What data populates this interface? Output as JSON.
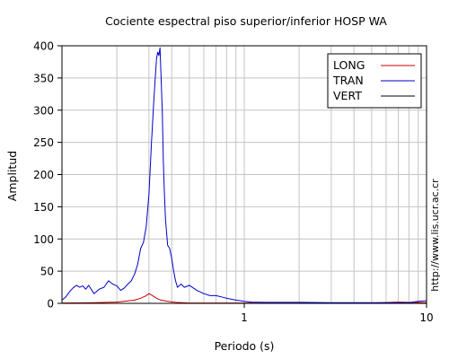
{
  "chart_data": {
    "type": "line",
    "title": "Cociente espectral piso superior/inferior  HOSP WA",
    "xlabel": "Periodo (s)",
    "ylabel": "Amplitud",
    "xscale": "log",
    "xlim": [
      0.1,
      10
    ],
    "ylim": [
      0,
      400
    ],
    "x_tick_labels": [
      {
        "value": 1,
        "label": "1"
      },
      {
        "value": 10,
        "label": "10"
      }
    ],
    "y_ticks": [
      0,
      50,
      100,
      150,
      200,
      250,
      300,
      350,
      400
    ],
    "grid": true,
    "legend_position": "top-right",
    "side_note": "http://www.lis.ucr.ac.cr",
    "series": [
      {
        "name": "LONG",
        "color": "#cc0000",
        "x": [
          0.1,
          0.15,
          0.2,
          0.25,
          0.27,
          0.29,
          0.3,
          0.31,
          0.33,
          0.35,
          0.38,
          0.42,
          0.5,
          0.7,
          1,
          2,
          3,
          5,
          7,
          10
        ],
        "y": [
          0.5,
          1,
          2,
          5,
          8,
          12,
          15,
          13,
          8,
          5,
          3,
          1.5,
          0.5,
          0.5,
          0.5,
          0.5,
          0.5,
          0.5,
          2,
          1
        ]
      },
      {
        "name": "TRAN",
        "color": "#0000cc",
        "x": [
          0.1,
          0.105,
          0.11,
          0.115,
          0.12,
          0.125,
          0.13,
          0.135,
          0.14,
          0.15,
          0.16,
          0.17,
          0.18,
          0.19,
          0.2,
          0.21,
          0.22,
          0.23,
          0.24,
          0.25,
          0.26,
          0.27,
          0.28,
          0.29,
          0.3,
          0.31,
          0.32,
          0.33,
          0.335,
          0.34,
          0.345,
          0.35,
          0.355,
          0.36,
          0.365,
          0.37,
          0.38,
          0.39,
          0.4,
          0.41,
          0.42,
          0.43,
          0.45,
          0.47,
          0.5,
          0.55,
          0.6,
          0.65,
          0.7,
          0.75,
          0.8,
          0.9,
          1.0,
          1.1,
          1.3,
          1.5,
          2,
          3,
          4,
          5,
          7,
          8,
          9,
          10
        ],
        "y": [
          5,
          10,
          18,
          24,
          28,
          25,
          27,
          22,
          28,
          15,
          22,
          25,
          35,
          30,
          27,
          20,
          24,
          30,
          35,
          45,
          60,
          85,
          95,
          120,
          170,
          250,
          320,
          380,
          390,
          385,
          397,
          350,
          300,
          220,
          170,
          130,
          90,
          85,
          70,
          50,
          35,
          25,
          30,
          25,
          28,
          20,
          15,
          12,
          12,
          10,
          8,
          5,
          3,
          2,
          1.5,
          1.5,
          1.5,
          1,
          1,
          1,
          1,
          1,
          3,
          4
        ]
      },
      {
        "name": "VERT",
        "color": "#000000",
        "x": [
          0.1,
          10
        ],
        "y": [
          0,
          0
        ]
      }
    ]
  }
}
